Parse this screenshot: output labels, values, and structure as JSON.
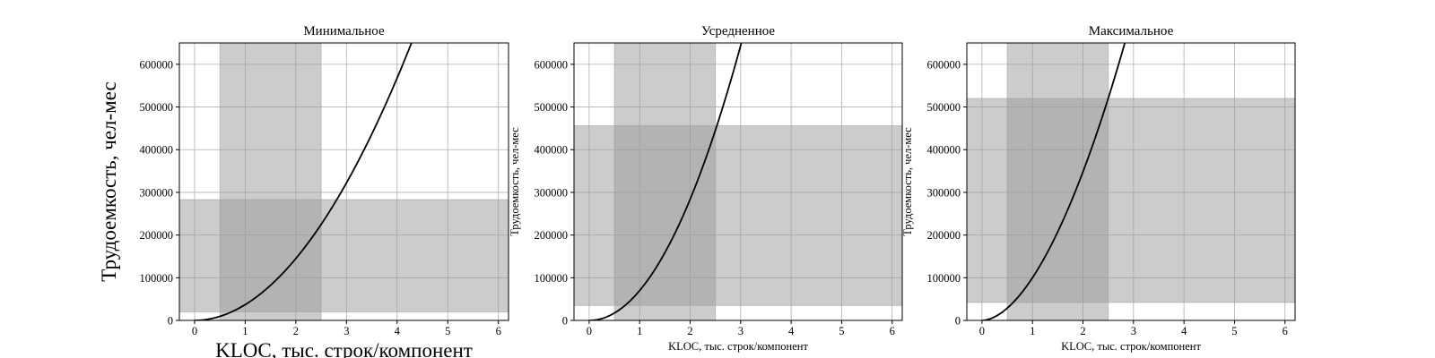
{
  "chart_data": [
    {
      "type": "line",
      "title": "Минимальное",
      "xlabel": "KLOC, тыс. строк/компонент",
      "ylabel": "Трудоемкость, чел-мес",
      "label_size": "large",
      "xlim": [
        -0.3,
        6.2
      ],
      "ylim": [
        0,
        650000
      ],
      "xticks": [
        "0",
        "1",
        "2",
        "3",
        "4",
        "5",
        "6"
      ],
      "yticks": [
        "0",
        "100000",
        "200000",
        "300000",
        "400000",
        "500000",
        "600000"
      ],
      "grid": true,
      "curve": {
        "coef": 37000,
        "exponent": 1.97,
        "color": "#000000"
      },
      "bands": {
        "x_range": [
          0.5,
          2.5
        ],
        "y_range": [
          20000,
          283000
        ],
        "color": "#999999"
      }
    },
    {
      "type": "line",
      "title": "Усредненное",
      "xlabel": "KLOC, тыс. строк/компонент",
      "ylabel": "Трудоемкость, чел-мес",
      "label_size": "small",
      "xlim": [
        -0.3,
        6.2
      ],
      "ylim": [
        0,
        650000
      ],
      "xticks": [
        "0",
        "1",
        "2",
        "3",
        "4",
        "5",
        "6"
      ],
      "yticks": [
        "0",
        "100000",
        "200000",
        "300000",
        "400000",
        "500000",
        "600000"
      ],
      "grid": true,
      "curve": {
        "coef": 70000,
        "exponent": 2.02,
        "color": "#000000"
      },
      "bands": {
        "x_range": [
          0.5,
          2.5
        ],
        "y_range": [
          35000,
          456000
        ],
        "color": "#999999"
      }
    },
    {
      "type": "line",
      "title": "Максимальное",
      "xlabel": "KLOC, тыс. строк/компонент",
      "ylabel": "Трудоемкость, чел-мес",
      "label_size": "small",
      "xlim": [
        -0.3,
        6.2
      ],
      "ylim": [
        0,
        650000
      ],
      "xticks": [
        "0",
        "1",
        "2",
        "3",
        "4",
        "5",
        "6"
      ],
      "yticks": [
        "0",
        "100000",
        "200000",
        "300000",
        "400000",
        "500000",
        "600000"
      ],
      "grid": true,
      "curve": {
        "coef": 100000,
        "exponent": 1.8,
        "color": "#000000"
      },
      "bands": {
        "x_range": [
          0.5,
          2.5
        ],
        "y_range": [
          42000,
          520000
        ],
        "color": "#999999"
      }
    }
  ]
}
